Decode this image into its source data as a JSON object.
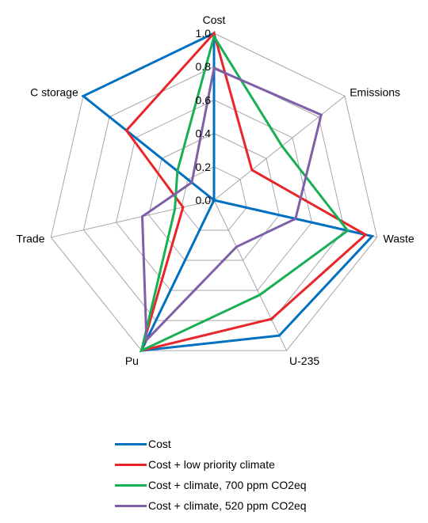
{
  "chart_data": {
    "type": "radar",
    "axes": [
      "Cost",
      "Emissions",
      "Waste",
      "U-235",
      "Pu",
      "Trade",
      "C storage"
    ],
    "ticks": [
      "0.0",
      "0.2",
      "0.4",
      "0.6",
      "0.8",
      "1.0"
    ],
    "range": [
      0,
      1
    ],
    "grid": true,
    "legend_position": "bottom",
    "series": [
      {
        "name": "Cost",
        "color": "#0070C0",
        "values": [
          1.0,
          0.0,
          0.97,
          0.9,
          1.0,
          0.0,
          1.0
        ]
      },
      {
        "name": "Cost + low priority climate",
        "color": "#E8262A",
        "values": [
          1.0,
          0.29,
          0.93,
          0.79,
          1.0,
          0.19,
          0.67
        ]
      },
      {
        "name": "Cost + climate, 700 ppm CO2eq",
        "color": "#1AAF54",
        "values": [
          0.98,
          0.52,
          0.82,
          0.63,
          1.0,
          0.24,
          0.28
        ]
      },
      {
        "name": "Cost + climate, 520 ppm CO2eq",
        "color": "#7F5FA8",
        "values": [
          0.79,
          0.82,
          0.5,
          0.31,
          0.93,
          0.44,
          0.17
        ]
      }
    ]
  }
}
